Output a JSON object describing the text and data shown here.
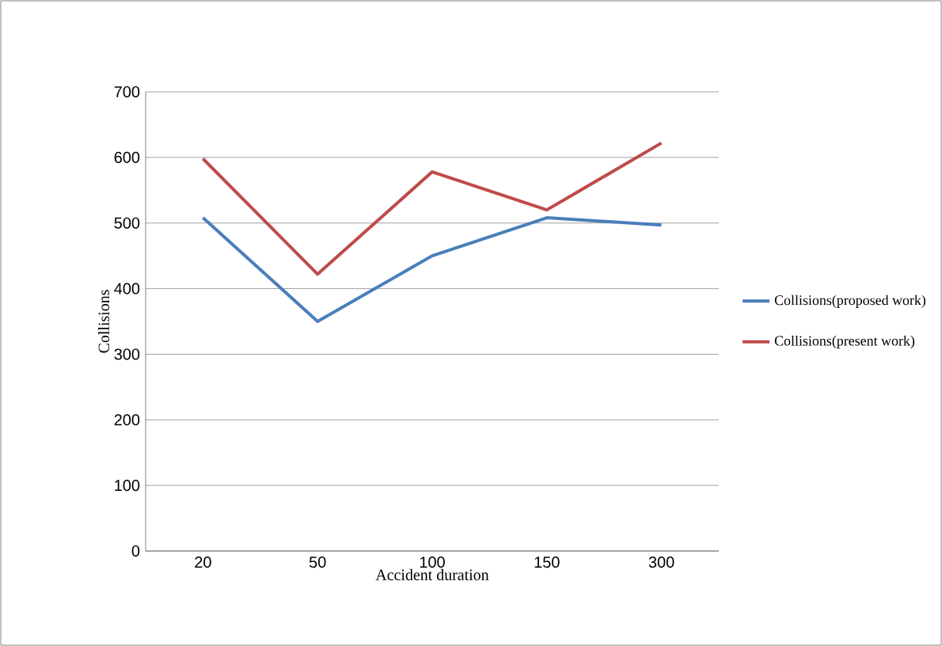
{
  "chart_data": {
    "type": "line",
    "xlabel": "Accident duration",
    "ylabel": "Collisions",
    "categories": [
      "20",
      "50",
      "100",
      "150",
      "300"
    ],
    "series": [
      {
        "name": "Collisions(proposed work)",
        "color": "#4a7ebb",
        "values": [
          508,
          350,
          450,
          508,
          497
        ]
      },
      {
        "name": "Collisions(present work)",
        "color": "#be4b48",
        "values": [
          598,
          422,
          578,
          520,
          622
        ]
      }
    ],
    "ylim": [
      0,
      700
    ],
    "yticks": [
      0,
      100,
      200,
      300,
      400,
      500,
      600,
      700
    ],
    "grid": "y",
    "legend": "right",
    "marker": "none",
    "line_style": "solid"
  }
}
